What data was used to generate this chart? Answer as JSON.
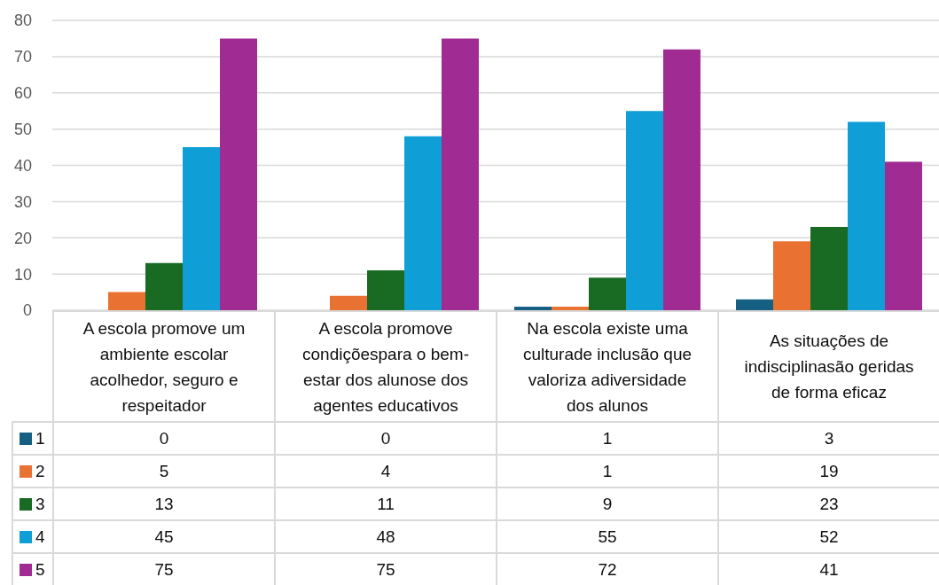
{
  "chart_data": {
    "type": "bar",
    "categories": [
      "A escola promove um ambiente escolar acolhedor, seguro e respeitador",
      "A escola promove condiçõespara o bem-estar dos alunose dos agentes educativos",
      "Na escola existe uma culturade inclusão que valoriza adiversidade dos alunos",
      "As situações de indisciplinasão geridas de forma eficaz"
    ],
    "series": [
      {
        "name": "1",
        "color": "#156082",
        "values": [
          0,
          0,
          1,
          3
        ]
      },
      {
        "name": "2",
        "color": "#e97132",
        "values": [
          5,
          4,
          1,
          19
        ]
      },
      {
        "name": "3",
        "color": "#196b24",
        "values": [
          13,
          11,
          9,
          23
        ]
      },
      {
        "name": "4",
        "color": "#0f9ed5",
        "values": [
          45,
          48,
          55,
          52
        ]
      },
      {
        "name": "5",
        "color": "#a02b93",
        "values": [
          75,
          75,
          72,
          41
        ]
      }
    ],
    "ylim": [
      0,
      80
    ],
    "yticks": [
      0,
      10,
      20,
      30,
      40,
      50,
      60,
      70,
      80
    ],
    "grid": "y",
    "legend": "bottom left",
    "data_labels": true
  }
}
